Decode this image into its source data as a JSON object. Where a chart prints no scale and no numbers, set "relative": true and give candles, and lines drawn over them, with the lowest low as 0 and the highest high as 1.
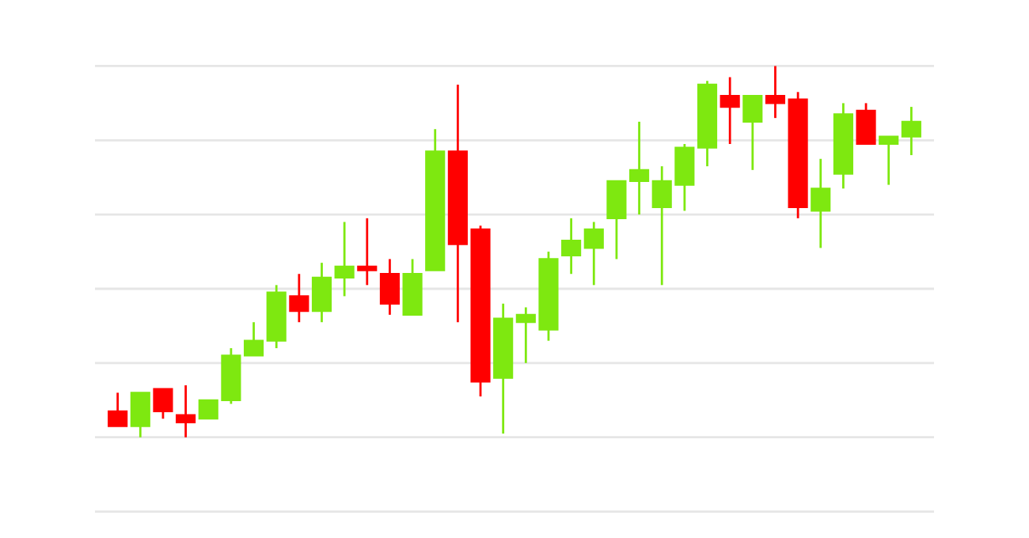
{
  "chart_data": {
    "type": "candlestick",
    "relative": true,
    "grid": "y",
    "categories": [
      null,
      null,
      null,
      null,
      null,
      null,
      null,
      null,
      null,
      null,
      null,
      null,
      null,
      null,
      null,
      null,
      null,
      null,
      null,
      null,
      null,
      null,
      null,
      null,
      null,
      null,
      null,
      null,
      null,
      null,
      null,
      null,
      null,
      null,
      null,
      null
    ],
    "ohlc": [
      [
        0.07,
        0.12,
        0.03,
        0.03
      ],
      [
        0.03,
        0.12,
        0,
        0.12
      ],
      [
        0.13,
        0.13,
        0.05,
        0.07
      ],
      [
        0.06,
        0.14,
        0,
        0.04
      ],
      [
        0.05,
        0.1,
        0.05,
        0.1
      ],
      [
        0.1,
        0.24,
        0.09,
        0.22
      ],
      [
        0.22,
        0.31,
        0.22,
        0.26
      ],
      [
        0.26,
        0.41,
        0.24,
        0.39
      ],
      [
        0.38,
        0.44,
        0.31,
        0.34
      ],
      [
        0.34,
        0.47,
        0.31,
        0.43
      ],
      [
        0.43,
        0.58,
        0.38,
        0.46
      ],
      [
        0.46,
        0.59,
        0.41,
        0.45
      ],
      [
        0.44,
        0.48,
        0.33,
        0.36
      ],
      [
        0.33,
        0.48,
        0.33,
        0.44
      ],
      [
        0.45,
        0.83,
        0.45,
        0.77
      ],
      [
        0.77,
        0.95,
        0.31,
        0.52
      ],
      [
        0.56,
        0.57,
        0.11,
        0.15
      ],
      [
        0.16,
        0.36,
        0.01,
        0.32
      ],
      [
        0.31,
        0.35,
        0.2,
        0.33
      ],
      [
        0.29,
        0.5,
        0.26,
        0.48
      ],
      [
        0.49,
        0.59,
        0.44,
        0.53
      ],
      [
        0.51,
        0.58,
        0.41,
        0.56
      ],
      [
        0.59,
        0.69,
        0.48,
        0.69
      ],
      [
        0.69,
        0.85,
        0.6,
        0.72
      ],
      [
        0.62,
        0.73,
        0.41,
        0.69
      ],
      [
        0.68,
        0.79,
        0.61,
        0.78
      ],
      [
        0.78,
        0.96,
        0.73,
        0.95
      ],
      [
        0.92,
        0.97,
        0.79,
        0.89
      ],
      [
        0.85,
        0.92,
        0.72,
        0.92
      ],
      [
        0.92,
        1,
        0.86,
        0.9
      ],
      [
        0.91,
        0.93,
        0.59,
        0.62
      ],
      [
        0.61,
        0.75,
        0.51,
        0.67
      ],
      [
        0.71,
        0.9,
        0.67,
        0.87
      ],
      [
        0.88,
        0.9,
        0.79,
        0.79
      ],
      [
        0.79,
        0.81,
        0.68,
        0.81
      ],
      [
        0.81,
        0.89,
        0.76,
        0.85
      ]
    ],
    "colors": [
      "#ff0000",
      "#7ee810",
      "#ff0000",
      "#ff0000",
      "#7ee810",
      "#7ee810",
      "#7ee810",
      "#7ee810",
      "#ff0000",
      "#7ee810",
      "#7ee810",
      "#ff0000",
      "#ff0000",
      "#7ee810",
      "#7ee810",
      "#ff0000",
      "#ff0000",
      "#7ee810",
      "#7ee810",
      "#7ee810",
      "#7ee810",
      "#7ee810",
      "#7ee810",
      "#7ee810",
      "#7ee810",
      "#7ee810",
      "#7ee810",
      "#ff0000",
      "#7ee810",
      "#ff0000",
      "#ff0000",
      "#7ee810",
      "#7ee810",
      "#ff0000",
      "#7ee810",
      "#7ee810"
    ]
  }
}
